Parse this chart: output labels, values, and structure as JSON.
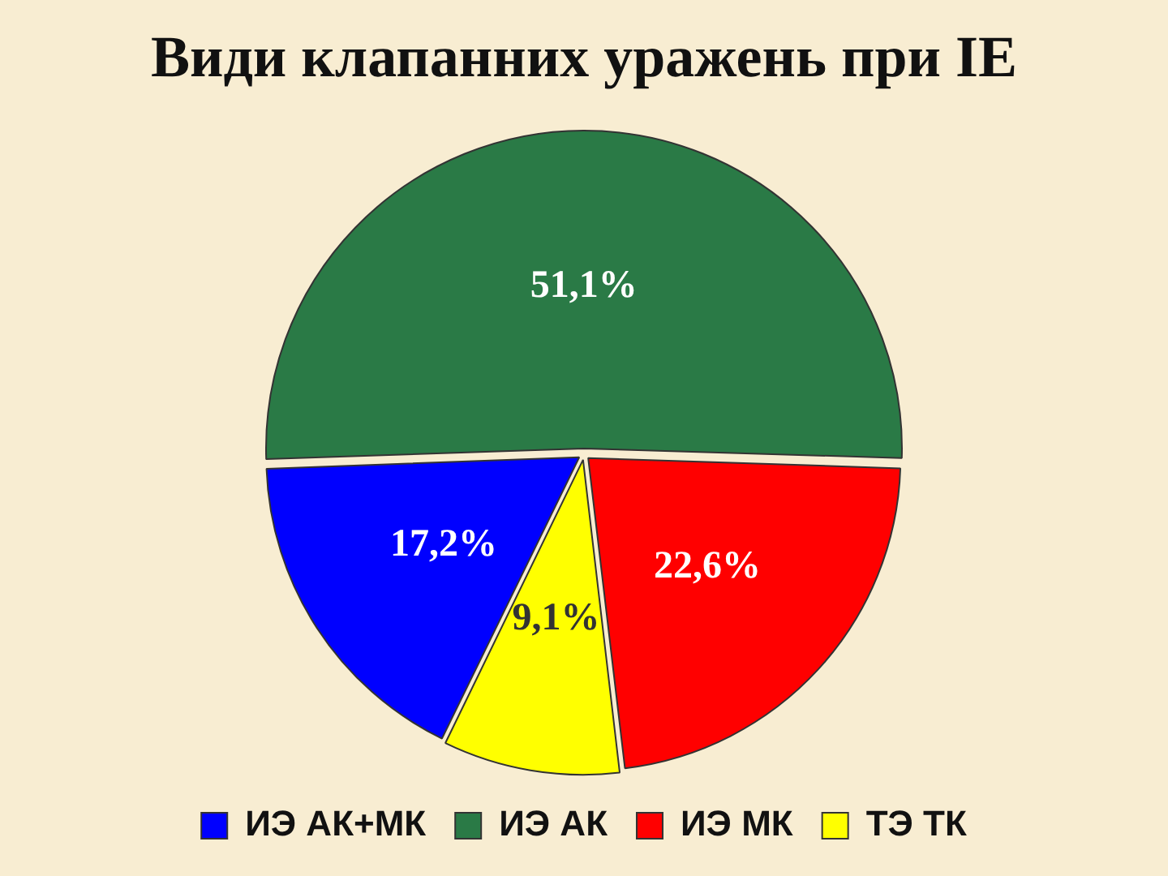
{
  "chart_data": {
    "type": "pie",
    "title": "Види клапанних уражень при IE",
    "categories": [
      "ИЭ АК+МК",
      "ИЭ АК",
      "ИЭ МК",
      "ТЭ ТК"
    ],
    "values": [
      17.2,
      51.1,
      22.6,
      9.1
    ],
    "colors": [
      "#0000ff",
      "#2a7a46",
      "#ff0000",
      "#ffff00"
    ],
    "value_labels": [
      "17,2%",
      "51,1%",
      "22,6%",
      "9,1%"
    ],
    "legend": "bottom"
  }
}
